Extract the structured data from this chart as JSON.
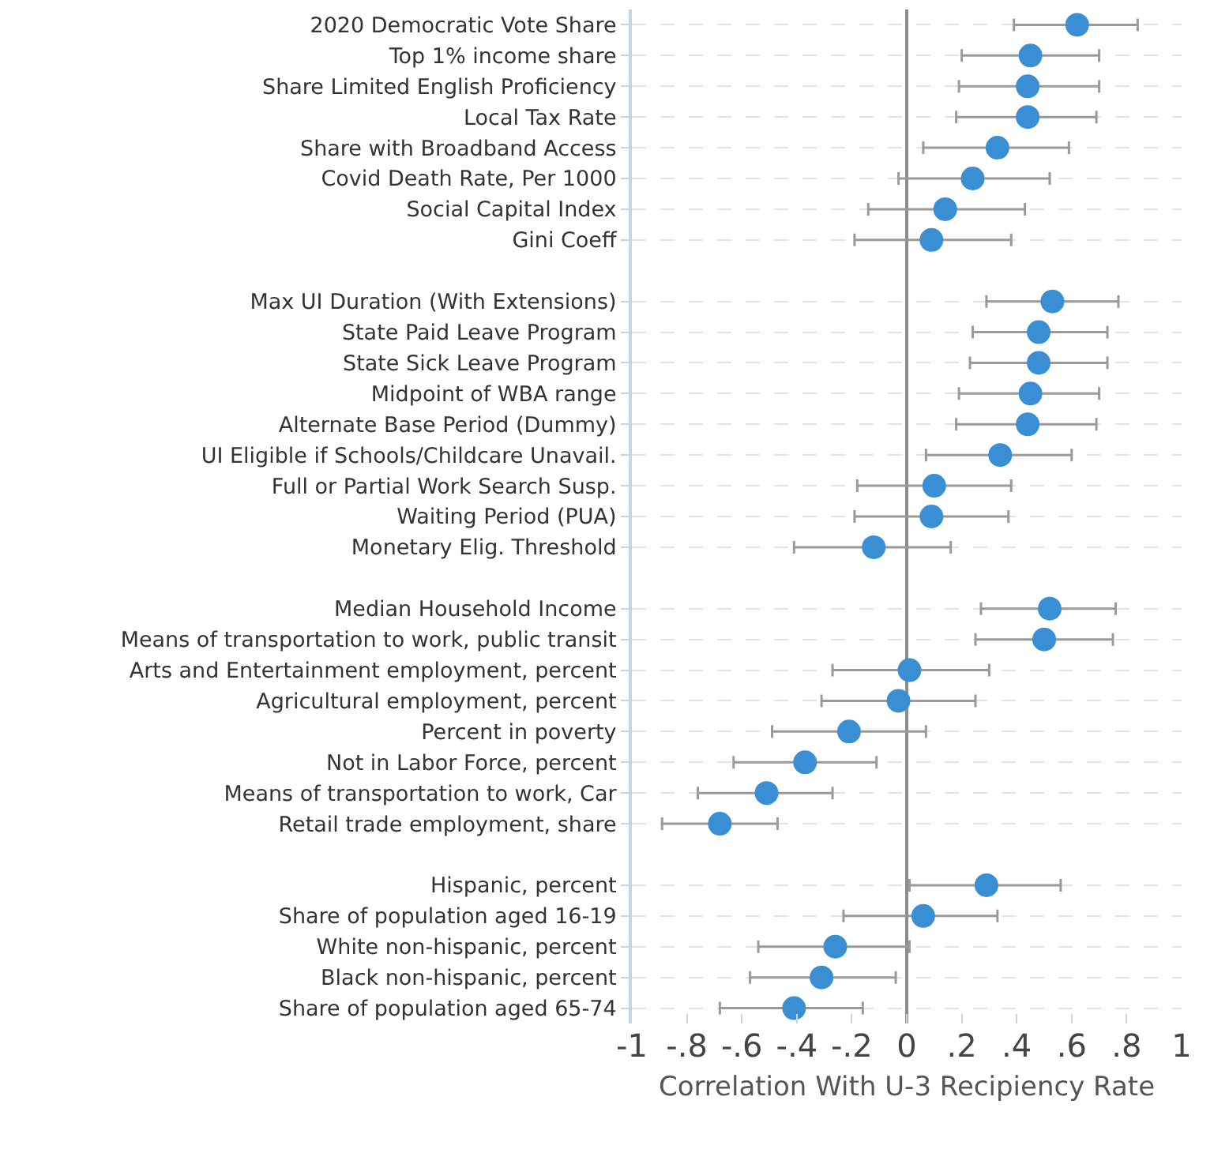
{
  "chart_data": {
    "type": "scatter",
    "orientation": "horizontal",
    "xlabel": "Correlation With U-3 Recipiency Rate",
    "categories": [
      "2020 Democratic Vote Share",
      "Top 1% income share",
      "Share Limited English Proficiency",
      "Local Tax Rate",
      "Share with Broadband Access",
      "Covid Death Rate, Per 1000",
      "Social Capital Index",
      "Gini Coeff",
      null,
      "Max UI Duration (With Extensions)",
      "State Paid Leave Program",
      "State Sick Leave Program",
      "Midpoint of WBA range",
      "Alternate Base Period (Dummy)",
      "UI Eligible if Schools/Childcare Unavail.",
      "Full or Partial Work Search Susp.",
      "Waiting Period (PUA)",
      "Monetary Elig. Threshold",
      null,
      "Median Household Income",
      "Means of transportation to work, public transit",
      "Arts and Entertainment employment, percent",
      "Agricultural employment, percent",
      "Percent in poverty",
      "Not in Labor Force, percent",
      "Means of transportation to work, Car",
      "Retail trade employment, share",
      null,
      "Hispanic, percent",
      "Share of population aged 16-19",
      "White non-hispanic, percent",
      "Black non-hispanic, percent",
      "Share of population aged 65-74"
    ],
    "values": [
      0.62,
      0.45,
      0.44,
      0.44,
      0.33,
      0.24,
      0.14,
      0.09,
      null,
      0.53,
      0.48,
      0.48,
      0.45,
      0.44,
      0.34,
      0.1,
      0.09,
      -0.12,
      null,
      0.52,
      0.5,
      0.01,
      -0.03,
      -0.21,
      -0.37,
      -0.51,
      -0.68,
      null,
      0.29,
      0.06,
      -0.26,
      -0.31,
      -0.41
    ],
    "errors": [
      [
        0.39,
        0.84
      ],
      [
        0.2,
        0.7
      ],
      [
        0.19,
        0.7
      ],
      [
        0.18,
        0.69
      ],
      [
        0.06,
        0.59
      ],
      [
        -0.03,
        0.52
      ],
      [
        -0.14,
        0.43
      ],
      [
        -0.19,
        0.38
      ],
      null,
      [
        0.29,
        0.77
      ],
      [
        0.24,
        0.73
      ],
      [
        0.23,
        0.73
      ],
      [
        0.19,
        0.7
      ],
      [
        0.18,
        0.69
      ],
      [
        0.07,
        0.6
      ],
      [
        -0.18,
        0.38
      ],
      [
        -0.19,
        0.37
      ],
      [
        -0.41,
        0.16
      ],
      null,
      [
        0.27,
        0.76
      ],
      [
        0.25,
        0.75
      ],
      [
        -0.27,
        0.3
      ],
      [
        -0.31,
        0.25
      ],
      [
        -0.49,
        0.07
      ],
      [
        -0.63,
        -0.11
      ],
      [
        -0.76,
        -0.27
      ],
      [
        -0.89,
        -0.47
      ],
      null,
      [
        0.01,
        0.56
      ],
      [
        -0.23,
        0.33
      ],
      [
        -0.54,
        0.01
      ],
      [
        -0.57,
        -0.04
      ],
      [
        -0.68,
        -0.16
      ]
    ],
    "color": "#3a8fd4",
    "marker": "circle",
    "xlim": [
      -1,
      1
    ],
    "xticks": [
      -1,
      {
        "value": -0.8,
        "label": "-.8"
      },
      {
        "value": -0.6,
        "label": "-.6"
      },
      {
        "value": -0.4,
        "label": "-.4"
      },
      {
        "value": -0.2,
        "label": "-.2"
      },
      0,
      {
        "value": 0.2,
        "label": ".2"
      },
      {
        "value": 0.4,
        "label": ".4"
      },
      {
        "value": 0.6,
        "label": ".6"
      },
      {
        "value": 0.8,
        "label": ".8"
      },
      1
    ],
    "ref_lines": [
      {
        "axis": "x",
        "value": 0,
        "color": "#8c8c8c"
      }
    ],
    "grid": "y"
  }
}
